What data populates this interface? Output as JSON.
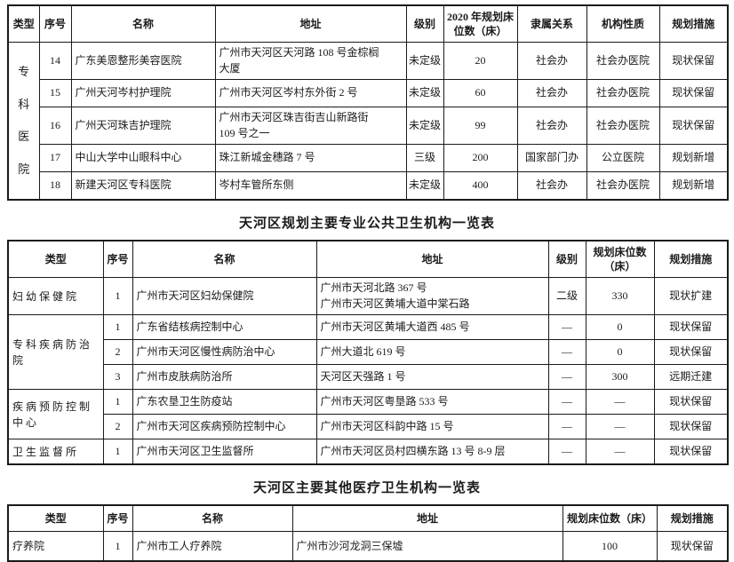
{
  "page": {
    "background": "#ffffff",
    "text_color": "#1a1a1a",
    "border_color": "#1a1a1a"
  },
  "table1": {
    "group_label": "专科医院",
    "headers": [
      "类型",
      "序号",
      "名称",
      "地址",
      "级别",
      "2020 年规划床位数（床）",
      "隶属关系",
      "机构性质",
      "规划措施"
    ],
    "rows": [
      {
        "no": "14",
        "name": "广东美恩整形美容医院",
        "address": "广州市天河区天河路 108 号金棕榈\n大厦",
        "level": "未定级",
        "beds": "20",
        "affiliation": "社会办",
        "nature": "社会办医院",
        "measure": "现状保留"
      },
      {
        "no": "15",
        "name": "广州天河岑村护理院",
        "address": "广州市天河区岑村东外街 2 号",
        "level": "未定级",
        "beds": "60",
        "affiliation": "社会办",
        "nature": "社会办医院",
        "measure": "现状保留"
      },
      {
        "no": "16",
        "name": "广州天河珠吉护理院",
        "address": "广州市天河区珠吉街吉山新路街\n109 号之一",
        "level": "未定级",
        "beds": "99",
        "affiliation": "社会办",
        "nature": "社会办医院",
        "measure": "现状保留"
      },
      {
        "no": "17",
        "name": "中山大学中山眼科中心",
        "address": "珠江新城金穗路 7 号",
        "level": "三级",
        "beds": "200",
        "affiliation": "国家部门办",
        "nature": "公立医院",
        "measure": "规划新增"
      },
      {
        "no": "18",
        "name": "新建天河区专科医院",
        "address": "岑村车管所东侧",
        "level": "未定级",
        "beds": "400",
        "affiliation": "社会办",
        "nature": "社会办医院",
        "measure": "规划新增"
      }
    ]
  },
  "table2": {
    "title": "天河区规划主要专业公共卫生机构一览表",
    "headers": [
      "类型",
      "序号",
      "名称",
      "地址",
      "级别",
      "规划床位数（床）",
      "规划措施"
    ],
    "groups": [
      {
        "type": "妇幼保健院",
        "rows": [
          {
            "no": "1",
            "name": "广州市天河区妇幼保健院",
            "address": "广州市天河北路 367 号\n广州市天河区黄埔大道中棠石路",
            "level": "二级",
            "beds": "330",
            "measure": "现状扩建"
          }
        ]
      },
      {
        "type": "专科疾病防治院",
        "rows": [
          {
            "no": "1",
            "name": "广东省结核病控制中心",
            "address": "广州市天河区黄埔大道西 485 号",
            "level": "—",
            "beds": "0",
            "measure": "现状保留"
          },
          {
            "no": "2",
            "name": "广州市天河区慢性病防治中心",
            "address": "广州大道北 619 号",
            "level": "—",
            "beds": "0",
            "measure": "现状保留"
          },
          {
            "no": "3",
            "name": "广州市皮肤病防治所",
            "address": "天河区天强路 1 号",
            "level": "—",
            "beds": "300",
            "measure": "远期迁建"
          }
        ]
      },
      {
        "type": "疾病预防控制中心",
        "rows": [
          {
            "no": "1",
            "name": "广东农垦卫生防疫站",
            "address": "广州市天河区粤垦路 533 号",
            "level": "—",
            "beds": "—",
            "measure": "现状保留"
          },
          {
            "no": "2",
            "name": "广州市天河区疾病预防控制中心",
            "address": "广州市天河区科韵中路 15 号",
            "level": "—",
            "beds": "—",
            "measure": "现状保留"
          }
        ]
      },
      {
        "type": "卫生监督所",
        "rows": [
          {
            "no": "1",
            "name": "广州市天河区卫生监督所",
            "address": "广州市天河区员村四横东路 13 号 8-9 层",
            "level": "—",
            "beds": "—",
            "measure": "现状保留"
          }
        ]
      }
    ]
  },
  "table3": {
    "title": "天河区主要其他医疗卫生机构一览表",
    "headers": [
      "类型",
      "序号",
      "名称",
      "地址",
      "规划床位数（床）",
      "规划措施"
    ],
    "rows": [
      {
        "type": "疗养院",
        "no": "1",
        "name": "广州市工人疗养院",
        "address": "广州市沙河龙洞三保墟",
        "beds": "100",
        "measure": "现状保留"
      }
    ]
  }
}
